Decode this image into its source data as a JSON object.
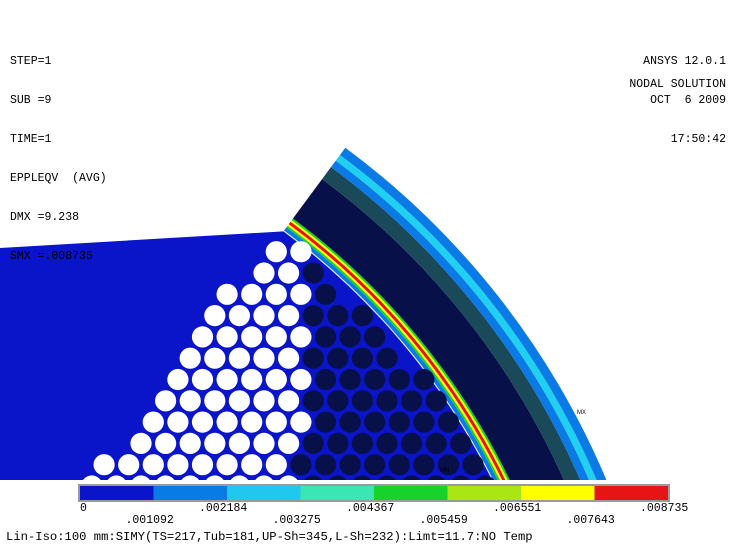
{
  "header_left": {
    "step": "STEP=1",
    "sub": "SUB =9",
    "time": "TIME=1",
    "result": "EPPLEQV  (AVG)",
    "dmx": "DMX =9.238",
    "smx": "SMX =.008735"
  },
  "header_right": {
    "version": "ANSYS 12.0.1",
    "date": "OCT  6 2009",
    "time": "17:50:42",
    "solution_type": "NODAL SOLUTION"
  },
  "markers": {
    "mx": "MX",
    "mn": "MN"
  },
  "legend": {
    "colors": [
      "#0a14c8",
      "#0a7ae6",
      "#20c8f0",
      "#3ce6b4",
      "#18d22c",
      "#aae614",
      "#ffff00",
      "#e61414"
    ],
    "labels_bottom_row": [
      "0",
      ".002184",
      ".004367",
      ".006551",
      ".008735"
    ],
    "labels_top_row": [
      ".001092",
      ".003275",
      ".005459",
      ".007643"
    ]
  },
  "footer": {
    "text": "Lin-Iso:100 mm:SIMY(TS=217,Tub=181,UP-Sh=345,L-Sh=232):Limt=11.7:NO Temp"
  },
  "theme": {
    "field_blue": "#0a14c8",
    "dark_navy": "#08104a",
    "dark_teal": "#1a4a5a",
    "cyan": "#20d0f0",
    "light_blue": "#0a7ae6",
    "red": "#e61414",
    "yellow": "#ffff00",
    "green": "#18d22c"
  }
}
